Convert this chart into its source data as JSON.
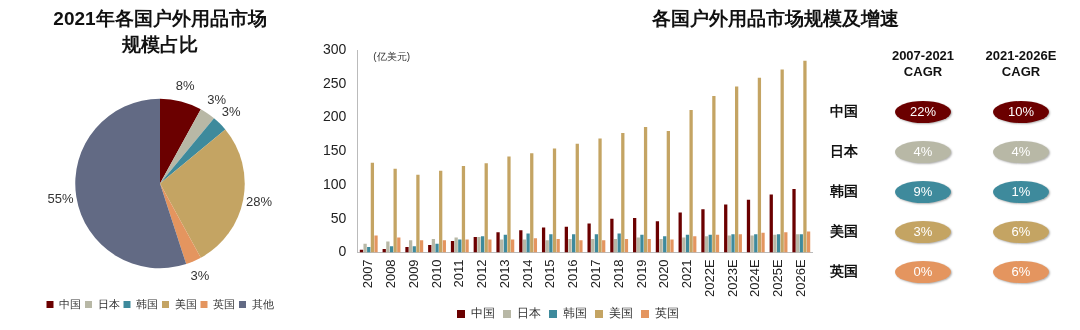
{
  "chart_data": [
    {
      "type": "pie",
      "title": "2021年各国户外用品市场规模占比",
      "categories": [
        "中国",
        "日本",
        "韩国",
        "美国",
        "英国",
        "其他"
      ],
      "values": [
        8,
        3,
        3,
        28,
        3,
        55
      ],
      "colors": [
        "#6b0000",
        "#b8b8a6",
        "#3e8a9c",
        "#c4a463",
        "#e4955f",
        "#626a84"
      ],
      "value_labels": [
        "8%",
        "3%",
        "3%",
        "28%",
        "3%",
        "55%"
      ],
      "legend": "bottom"
    },
    {
      "type": "bar",
      "title": "各国户外用品市场规模及增速",
      "ylabel": "(亿美元)",
      "categories": [
        "2007",
        "2008",
        "2009",
        "2010",
        "2011",
        "2012",
        "2013",
        "2014",
        "2015",
        "2016",
        "2017",
        "2018",
        "2019",
        "2020",
        "2021",
        "2022E",
        "2023E",
        "2024E",
        "2025E",
        "2026E"
      ],
      "ylim": [
        0,
        300
      ],
      "yticks": [
        0,
        50,
        100,
        150,
        200,
        250,
        300
      ],
      "legend": "bottom",
      "series": [
        {
          "name": "中国",
          "color": "#6b0000",
          "values": [
            4,
            5,
            8,
            11,
            17,
            23,
            30,
            33,
            37,
            38,
            43,
            50,
            51,
            46,
            59,
            64,
            71,
            78,
            86,
            94
          ]
        },
        {
          "name": "日本",
          "color": "#b8b8a6",
          "values": [
            13,
            16,
            18,
            20,
            22,
            23,
            19,
            19,
            18,
            20,
            20,
            20,
            22,
            20,
            22,
            24,
            25,
            25,
            26,
            27
          ]
        },
        {
          "name": "韩国",
          "color": "#3e8a9c",
          "values": [
            8,
            9,
            9,
            13,
            19,
            24,
            26,
            28,
            27,
            27,
            27,
            28,
            26,
            24,
            26,
            26,
            27,
            27,
            27,
            27
          ]
        },
        {
          "name": "美国",
          "color": "#c4a463",
          "values": [
            133,
            124,
            115,
            121,
            128,
            132,
            142,
            147,
            154,
            161,
            169,
            177,
            186,
            180,
            211,
            232,
            246,
            259,
            271,
            284
          ]
        },
        {
          "name": "英国",
          "color": "#e4955f",
          "values": [
            25,
            22,
            18,
            18,
            19,
            19,
            19,
            21,
            20,
            18,
            18,
            20,
            20,
            19,
            24,
            26,
            27,
            29,
            30,
            31
          ]
        }
      ]
    },
    {
      "type": "other",
      "categories": [
        "中国",
        "日本",
        "韩国",
        "美国",
        "英国"
      ],
      "series": [
        {
          "name": "2007-2021 CAGR",
          "colors": [
            "#6b0000",
            "#b8b8a6",
            "#3e8a9c",
            "#c4a463",
            "#e4955f"
          ],
          "values": [
            22,
            4,
            9,
            3,
            0
          ],
          "value_labels": [
            "22%",
            "4%",
            "9%",
            "3%",
            "0%"
          ]
        },
        {
          "name": "2021-2026E CAGR",
          "colors": [
            "#6b0000",
            "#b8b8a6",
            "#3e8a9c",
            "#c4a463",
            "#e4955f"
          ],
          "values": [
            10,
            4,
            1,
            6,
            6
          ],
          "value_labels": [
            "10%",
            "4%",
            "1%",
            "6%",
            "6%"
          ]
        }
      ]
    }
  ]
}
